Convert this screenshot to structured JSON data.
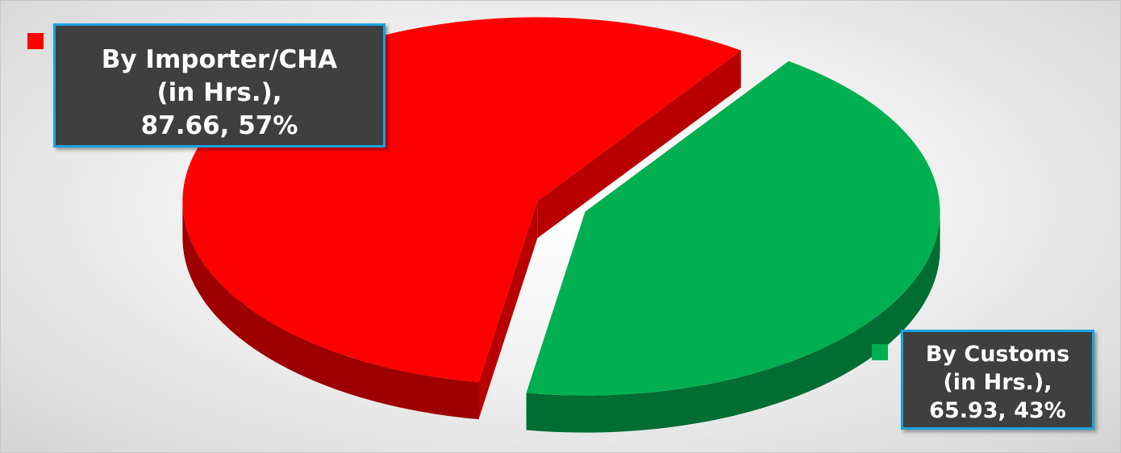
{
  "chart_data": {
    "type": "pie",
    "categories": [
      "By Importer/CHA (in Hrs.),",
      "By Customs (in Hrs.),"
    ],
    "values": [
      87.66,
      65.93
    ],
    "value_labels": [
      "87.66, 57%",
      "65.93, 43%"
    ],
    "colors": [
      "#ff0000",
      "#00b050"
    ]
  }
}
